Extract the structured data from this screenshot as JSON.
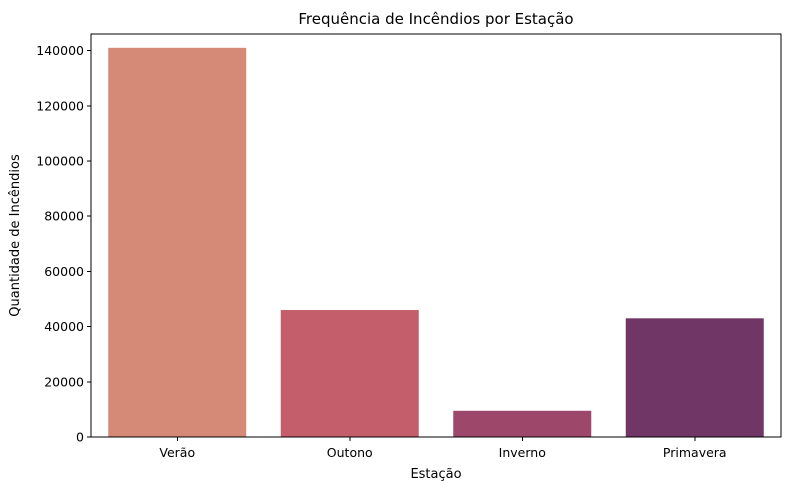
{
  "chart_data": {
    "type": "bar",
    "title": "Frequência de Incêndios por Estação",
    "xlabel": "Estação",
    "ylabel": "Quantidade de Incêndios",
    "categories": [
      "Verão",
      "Outono",
      "Inverno",
      "Primavera"
    ],
    "values": [
      141000,
      46000,
      9500,
      43000
    ],
    "colors": [
      "#d58a77",
      "#c45e6b",
      "#9d476b",
      "#703766"
    ],
    "ylim": [
      0,
      146000
    ],
    "yticks": [
      0,
      20000,
      40000,
      60000,
      80000,
      100000,
      120000,
      140000
    ],
    "ytick_labels": [
      "0",
      "20000",
      "40000",
      "60000",
      "80000",
      "100000",
      "120000",
      "140000"
    ],
    "grid": false,
    "legend": false
  }
}
